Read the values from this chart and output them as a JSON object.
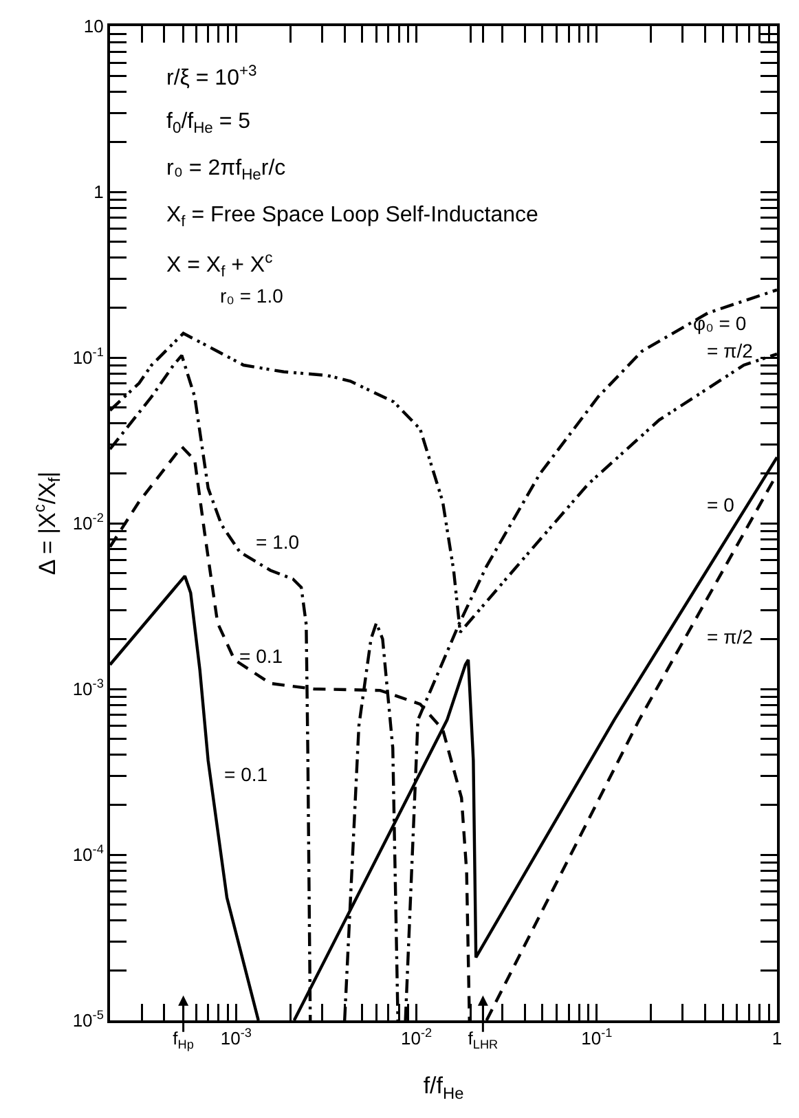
{
  "chart_data": {
    "type": "line",
    "xlabel": "f/f$_{He}$",
    "ylabel": "Δ = |X$^{c}$/X$_{f}$|",
    "log": "xy",
    "grid": false,
    "marker": "none",
    "xlim": [
      0.0002,
      1
    ],
    "ylim": [
      1e-05,
      10
    ],
    "xticks": [
      {
        "value": 0.00051,
        "label": "f$_{Hp}$"
      },
      {
        "value": 0.001,
        "label": "10$^{-3}$"
      },
      {
        "value": 0.01,
        "label": "10$^{-2}$"
      },
      {
        "value": 0.0234,
        "label": "f$_{LHR}$"
      },
      {
        "value": 0.1,
        "label": "10$^{-1}$"
      },
      1,
      {
        "value": 0.0003,
        "label": null
      },
      {
        "value": 0.0004,
        "label": null
      },
      {
        "value": 0.0006,
        "label": null
      },
      {
        "value": 0.0007,
        "label": null
      },
      {
        "value": 0.0008,
        "label": null
      },
      {
        "value": 0.0009,
        "label": null
      },
      {
        "value": 0.002,
        "label": null
      },
      {
        "value": 0.003,
        "label": null
      },
      {
        "value": 0.004,
        "label": null
      },
      {
        "value": 0.005,
        "label": null
      },
      {
        "value": 0.006,
        "label": null
      },
      {
        "value": 0.007,
        "label": null
      },
      {
        "value": 0.008,
        "label": null
      },
      {
        "value": 0.009,
        "label": null
      },
      {
        "value": 0.02,
        "label": null
      },
      {
        "value": 0.03,
        "label": null
      },
      {
        "value": 0.04,
        "label": null
      },
      {
        "value": 0.05,
        "label": null
      },
      {
        "value": 0.06,
        "label": null
      },
      {
        "value": 0.07,
        "label": null
      },
      {
        "value": 0.08,
        "label": null
      },
      {
        "value": 0.09,
        "label": null
      },
      {
        "value": 0.2,
        "label": null
      },
      {
        "value": 0.3,
        "label": null
      },
      {
        "value": 0.4,
        "label": null
      },
      {
        "value": 0.5,
        "label": null
      },
      {
        "value": 0.6,
        "label": null
      },
      {
        "value": 0.7,
        "label": null
      },
      {
        "value": 0.8,
        "label": null
      },
      {
        "value": 0.9,
        "label": null
      }
    ],
    "yticks": [
      {
        "value": 1e-05,
        "label": "10$^{-5}$"
      },
      {
        "value": 0.0001,
        "label": "10$^{-4}$"
      },
      {
        "value": 0.001,
        "label": "10$^{-3}$"
      },
      {
        "value": 0.01,
        "label": "10$^{-2}$"
      },
      {
        "value": 0.1,
        "label": "10$^{-1}$"
      },
      1,
      10,
      {
        "value": 2e-05,
        "label": null
      },
      {
        "value": 3e-05,
        "label": null
      },
      {
        "value": 4e-05,
        "label": null
      },
      {
        "value": 5e-05,
        "label": null
      },
      {
        "value": 6e-05,
        "label": null
      },
      {
        "value": 7e-05,
        "label": null
      },
      {
        "value": 8e-05,
        "label": null
      },
      {
        "value": 9e-05,
        "label": null
      },
      {
        "value": 0.0002,
        "label": null
      },
      {
        "value": 0.0003,
        "label": null
      },
      {
        "value": 0.0004,
        "label": null
      },
      {
        "value": 0.0005,
        "label": null
      },
      {
        "value": 0.0006,
        "label": null
      },
      {
        "value": 0.0007,
        "label": null
      },
      {
        "value": 0.0008,
        "label": null
      },
      {
        "value": 0.0009,
        "label": null
      },
      {
        "value": 0.002,
        "label": null
      },
      {
        "value": 0.003,
        "label": null
      },
      {
        "value": 0.004,
        "label": null
      },
      {
        "value": 0.005,
        "label": null
      },
      {
        "value": 0.006,
        "label": null
      },
      {
        "value": 0.007,
        "label": null
      },
      {
        "value": 0.008,
        "label": null
      },
      {
        "value": 0.009,
        "label": null
      },
      {
        "value": 0.02,
        "label": null
      },
      {
        "value": 0.03,
        "label": null
      },
      {
        "value": 0.04,
        "label": null
      },
      {
        "value": 0.05,
        "label": null
      },
      {
        "value": 0.06,
        "label": null
      },
      {
        "value": 0.07,
        "label": null
      },
      {
        "value": 0.08,
        "label": null
      },
      {
        "value": 0.09,
        "label": null
      },
      {
        "value": 0.2,
        "label": null
      },
      {
        "value": 0.3,
        "label": null
      },
      {
        "value": 0.4,
        "label": null
      },
      {
        "value": 0.5,
        "label": null
      },
      {
        "value": 0.6,
        "label": null
      },
      {
        "value": 0.7,
        "label": null
      },
      {
        "value": 0.8,
        "label": null
      },
      {
        "value": 0.9,
        "label": null
      },
      {
        "value": 2,
        "label": null
      },
      {
        "value": 3,
        "label": null
      },
      {
        "value": 4,
        "label": null
      },
      {
        "value": 5,
        "label": null
      },
      {
        "value": 6,
        "label": null
      },
      {
        "value": 7,
        "label": null
      },
      {
        "value": 8,
        "label": null
      },
      {
        "value": 9,
        "label": null
      }
    ],
    "series": [
      {
        "color": "#000000",
        "line_style": "dashdotdot",
        "x": [
          0.0002,
          0.00029,
          0.00034,
          0.00051,
          0.00079,
          0.0011,
          0.00184,
          0.0032,
          0.0043,
          0.0075,
          0.0105,
          0.014,
          0.0161,
          0.0175,
          0.0387,
          0.09,
          0.222,
          0.655,
          1
        ],
        "values": [
          0.048,
          0.07,
          0.09,
          0.14,
          0.109,
          0.09,
          0.082,
          0.078,
          0.072,
          0.054,
          0.037,
          0.0135,
          0.0052,
          0.0022,
          0.006,
          0.0173,
          0.042,
          0.09,
          0.105
        ]
      },
      {
        "color": "#000000",
        "line_style": "dashdot",
        "x": [
          0.0002,
          0.00034,
          0.00045,
          0.0005,
          0.00059,
          0.0007,
          0.00083,
          0.00105,
          0.00155,
          0.00207,
          0.0023,
          0.00245,
          0.0025,
          0.00258,
          null,
          0.004,
          0.0048,
          0.0056,
          0.006,
          0.0065,
          0.0074,
          0.0079,
          null,
          0.0087,
          0.0102,
          0.0172,
          0.0245,
          0.0483,
          0.102,
          0.178,
          0.415,
          1
        ],
        "values": [
          0.028,
          0.058,
          0.09,
          0.103,
          0.058,
          0.0163,
          0.0098,
          0.0067,
          0.0052,
          0.0046,
          0.0041,
          0.00245,
          0.00042,
          1e-05,
          null,
          1e-05,
          0.0006,
          0.002,
          0.0025,
          0.002,
          0.00044,
          1e-05,
          null,
          1e-05,
          0.00065,
          0.00245,
          0.0055,
          0.0198,
          0.058,
          0.109,
          0.186,
          0.256
        ]
      },
      {
        "color": "#000000",
        "line_style": "dashed",
        "x": [
          0.0002,
          0.00029,
          0.0005,
          0.00059,
          0.00067,
          0.00079,
          0.00098,
          0.00155,
          0.0027,
          0.0063,
          0.0105,
          0.014,
          0.0178,
          0.019,
          0.0197,
          null,
          0.0245,
          0.172,
          1
        ],
        "values": [
          0.0072,
          0.0135,
          0.029,
          0.024,
          0.0087,
          0.0025,
          0.0015,
          0.00108,
          0.001,
          0.00098,
          0.00081,
          0.00057,
          0.00022,
          7.9e-05,
          1e-05,
          null,
          1e-05,
          0.00065,
          0.0198
        ]
      },
      {
        "color": "#000000",
        "line_style": "solid",
        "x": [
          0.0002,
          0.00052,
          0.00056,
          0.00063,
          0.0007,
          0.00089,
          0.00133,
          null,
          0.0021,
          0.0148,
          0.0187,
          0.0194,
          0.0207,
          0.0214,
          0.125,
          1
        ],
        "values": [
          0.0014,
          0.0048,
          0.0038,
          0.0013,
          0.00037,
          5.5e-05,
          1e-05,
          null,
          1e-05,
          0.00065,
          0.0014,
          0.0015,
          0.00037,
          2.4e-05,
          0.00065,
          0.025
        ]
      }
    ],
    "annotations": [
      "r/ξ = 10$^{+3}$",
      "f$_{0}$/f$_{He}$ = 5",
      "r₀ = 2πf$_{He}$r/c",
      "X$_{f}$ = Free Space Loop Self-Inductance",
      "X = X$_{f}$ + X$^{c}$",
      "r₀ = 1.0",
      "= 1.0",
      "= 0.1",
      "= 0.1",
      "φ₀ = 0",
      "= π/2",
      "= 0",
      "= π/2"
    ]
  }
}
